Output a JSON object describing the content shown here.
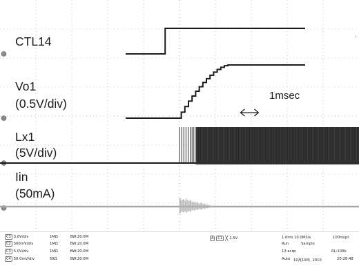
{
  "chart_data": {
    "type": "line",
    "title": "",
    "x_unit": "ms",
    "x_range": [
      -1.5,
      3.5
    ],
    "annotation": {
      "text": "1msec",
      "span_ms": [
        1.7,
        2.2
      ]
    },
    "traces": [
      {
        "label": "CTL14",
        "scale_label": "",
        "channel": "C1",
        "points": [
          [
            -1.5,
            0
          ],
          [
            -0.4,
            0
          ],
          [
            -0.4,
            3.0
          ],
          [
            3.5,
            3.0
          ]
        ],
        "unit": "V"
      },
      {
        "label": "Vo1",
        "scale_label": "(0.5V/div)",
        "channel": "C2",
        "points": [
          [
            -1.5,
            0
          ],
          [
            0.05,
            0
          ],
          [
            1.0,
            0.55
          ],
          [
            1.45,
            0.8
          ],
          [
            3.5,
            0.8
          ]
        ],
        "unit": "V"
      },
      {
        "label": "Lx1",
        "scale_label": "(5V/div)",
        "channel": "C3",
        "pulses_start_ms": 0.0,
        "dense_start_ms": 0.45,
        "amplitude_V": 5.0
      },
      {
        "label": "Iin",
        "scale_label": "(50mA)",
        "channel": "C4",
        "burst_ms": [
          0.0,
          1.0
        ],
        "peak_mA": 10
      }
    ]
  },
  "status": {
    "channels": [
      {
        "id": "C1",
        "scale": "3.0V/div",
        "imp": "1MΩ",
        "bw": "BW:20.0M"
      },
      {
        "id": "C2",
        "scale": "500mV/div",
        "imp": "1MΩ",
        "bw": "BW:20.0M"
      },
      {
        "id": "C3",
        "scale": "5.0V/div",
        "imp": "1MΩ",
        "bw": "BW:20.0M"
      },
      {
        "id": "C4",
        "scale": "50.0mV/div",
        "imp": "50Ω",
        "bw": "BW:20.0M"
      }
    ],
    "trigger": {
      "source": "C1",
      "mode": "A",
      "level": "1.5V"
    },
    "acq": {
      "timebase": "1.0ms",
      "rate": "10.0MS/s",
      "res": "100ns/pt",
      "state": "Run",
      "type": "Sample",
      "count": "13 acqs",
      "rl": "RL:100k",
      "auto": "Auto",
      "date": "10月19日, 2010",
      "time": "20:28:48"
    }
  }
}
